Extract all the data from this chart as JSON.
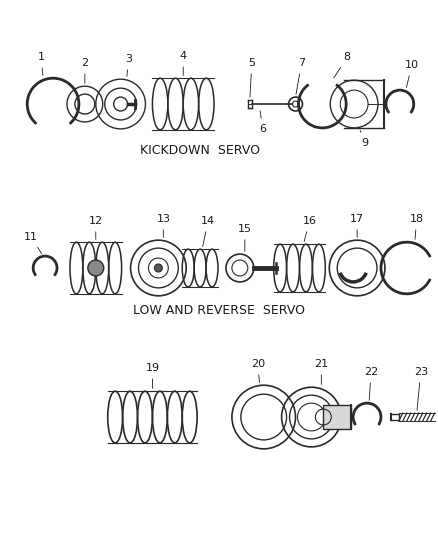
{
  "background_color": "#ffffff",
  "label1": "KICKDOWN  SERVO",
  "label2": "LOW AND REVERSE  SERVO",
  "line_color": "#2a2a2a",
  "text_color": "#1a1a1a",
  "font_size": 8.5
}
